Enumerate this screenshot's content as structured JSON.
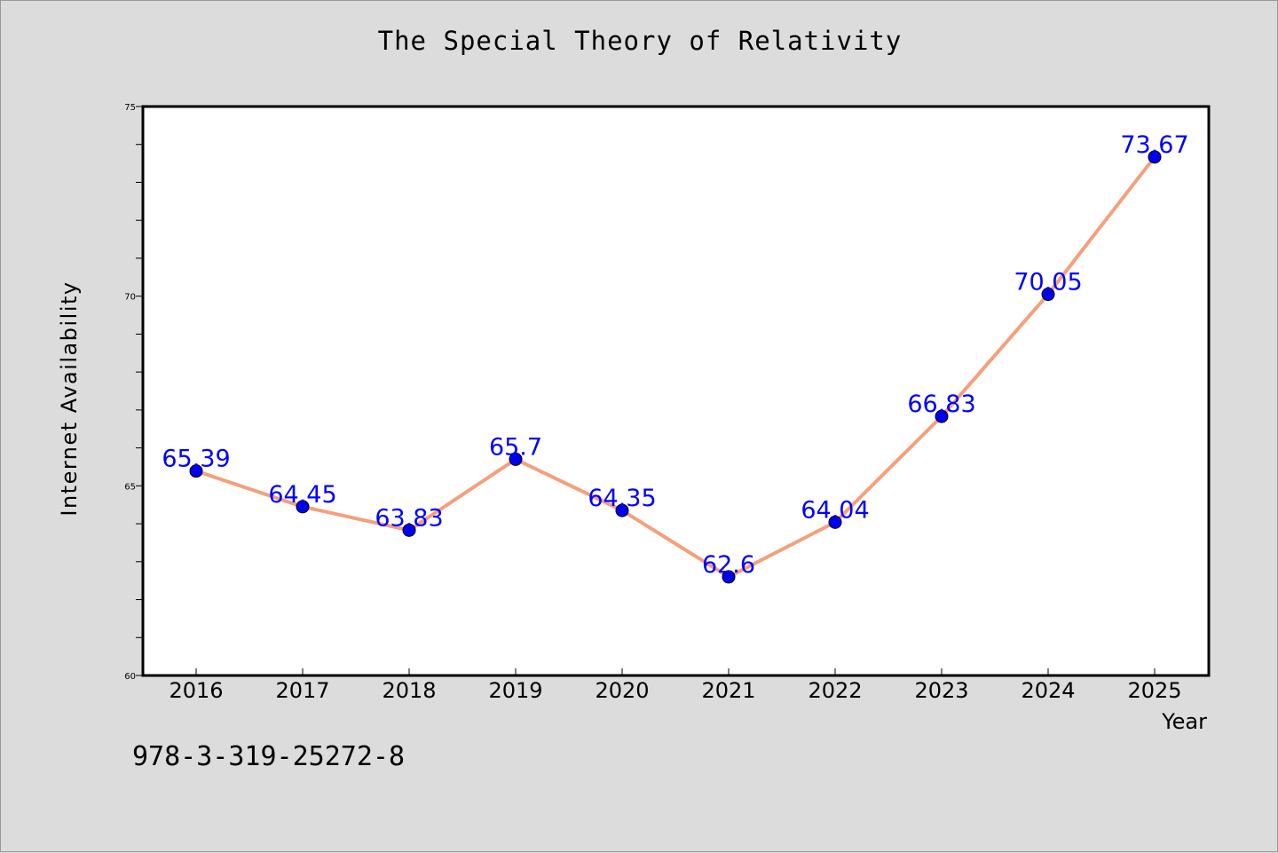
{
  "title": "The Special Theory of Relativity",
  "isbn": "978-3-319-25272-8",
  "chart_data": {
    "type": "line",
    "title": "The Special Theory of Relativity",
    "xlabel": "Year",
    "ylabel": "Internet Availability",
    "categories": [
      "2016",
      "2017",
      "2018",
      "2019",
      "2020",
      "2021",
      "2022",
      "2023",
      "2024",
      "2025"
    ],
    "values": [
      65.39,
      64.45,
      63.83,
      65.7,
      64.35,
      62.6,
      64.04,
      66.83,
      70.05,
      73.67
    ],
    "data_labels": [
      "65.39",
      "64.45",
      "63.83",
      "65.7",
      "64.35",
      "62.6",
      "64.04",
      "66.83",
      "70.05",
      "73.67"
    ],
    "yticks": [
      "60",
      "65",
      "70",
      "75"
    ],
    "ylim": [
      60,
      75
    ],
    "grid": false,
    "line_color": "#f4a07c",
    "marker_color": "#0000ee",
    "label_color": "#0000ff"
  }
}
